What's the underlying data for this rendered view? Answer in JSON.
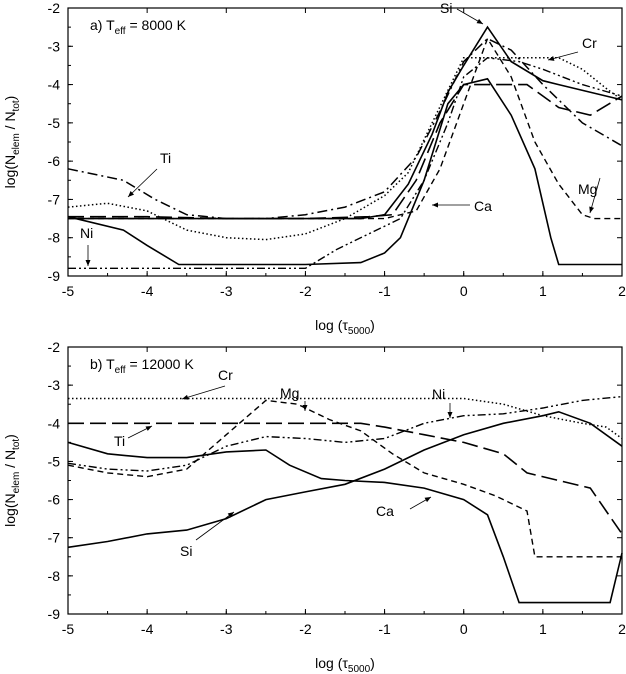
{
  "chart_data": [
    {
      "type": "line",
      "panel_label": "a)",
      "teff_label": "8000 K",
      "xlabel": "log (τ5000)",
      "ylabel": "log(Nelem / Ntot)",
      "xlim": [
        -5,
        2
      ],
      "ylim": [
        -9,
        -2
      ],
      "xticks": [
        "-5",
        "-4",
        "-3",
        "-2",
        "-1",
        "0",
        "1",
        "2"
      ],
      "yticks": [
        "-2",
        "-3",
        "-4",
        "-5",
        "-6",
        "-7",
        "-8",
        "-9"
      ],
      "series": [
        {
          "name": "Si",
          "style": "solid",
          "x": [
            -5,
            -4.5,
            -4,
            -3.7,
            -3.3,
            -3,
            -2.5,
            -2,
            -1.5,
            -1.3,
            -1,
            -0.7,
            -0.4,
            -0.2,
            0,
            0.3,
            0.6,
            1.0,
            1.2,
            2.0
          ],
          "y": [
            -7.5,
            -7.5,
            -7.5,
            -7.5,
            -7.5,
            -7.5,
            -7.5,
            -7.5,
            -7.5,
            -7.5,
            -7.4,
            -6.6,
            -5.3,
            -4.2,
            -3.5,
            -2.5,
            -3.4,
            -3.9,
            -4.0,
            -4.4
          ]
        },
        {
          "name": "Ca",
          "style": "solid",
          "x": [
            -5,
            -4.3,
            -4,
            -3.6,
            -3,
            -2,
            -1.3,
            -1,
            -0.8,
            -0.5,
            -0.2,
            0,
            0.3,
            0.6,
            0.9,
            1.1,
            1.2,
            2.0
          ],
          "y": [
            -7.45,
            -7.8,
            -8.2,
            -8.7,
            -8.7,
            -8.7,
            -8.65,
            -8.4,
            -8.0,
            -6.5,
            -4.5,
            -4.0,
            -3.85,
            -4.8,
            -6.2,
            -8.0,
            -8.7,
            -8.7
          ]
        },
        {
          "name": "Mg",
          "style": "dashed",
          "x": [
            -5,
            -3,
            -2,
            -1,
            -0.6,
            -0.3,
            0,
            0.3,
            0.6,
            0.9,
            1.2,
            1.5,
            1.65,
            2.0
          ],
          "y": [
            -7.5,
            -7.5,
            -7.5,
            -7.5,
            -7.3,
            -6.2,
            -4.5,
            -2.8,
            -3.8,
            -5.5,
            -6.6,
            -7.4,
            -7.5,
            -7.5
          ]
        },
        {
          "name": "Cr",
          "style": "dotted",
          "x": [
            -5,
            -4.5,
            -4,
            -3.5,
            -3,
            -2.5,
            -2,
            -1.5,
            -1,
            -0.7,
            -0.4,
            0,
            0.3,
            0.7,
            1.0,
            1.2,
            1.5,
            1.8,
            2.0
          ],
          "y": [
            -7.2,
            -7.1,
            -7.3,
            -7.8,
            -8.0,
            -8.05,
            -7.9,
            -7.5,
            -6.9,
            -6.3,
            -5.0,
            -3.3,
            -3.3,
            -3.3,
            -3.3,
            -3.3,
            -3.6,
            -4.1,
            -4.4
          ]
        },
        {
          "name": "Ti",
          "style": "dash-dot",
          "x": [
            -5,
            -4.3,
            -3.9,
            -3.5,
            -3,
            -2.5,
            -2,
            -1.5,
            -1,
            -0.6,
            -0.3,
            0,
            0.3,
            0.6,
            1.0,
            1.5,
            2.0
          ],
          "y": [
            -6.2,
            -6.5,
            -7.0,
            -7.4,
            -7.5,
            -7.5,
            -7.4,
            -7.2,
            -6.8,
            -5.9,
            -4.7,
            -3.4,
            -2.8,
            -3.1,
            -4.0,
            -5.0,
            -5.6
          ]
        },
        {
          "name": "Ni",
          "style": "dash-dot-dot",
          "x": [
            -5,
            -4,
            -3,
            -2,
            -1.6,
            -1.2,
            -0.8,
            -0.5,
            -0.2,
            0,
            0.3,
            0.7,
            1.0,
            1.5,
            2.0
          ],
          "y": [
            -8.8,
            -8.8,
            -8.8,
            -8.8,
            -8.3,
            -7.9,
            -7.5,
            -6.5,
            -5.0,
            -3.8,
            -3.3,
            -3.4,
            -3.6,
            -4.0,
            -4.3
          ]
        },
        {
          "name": "",
          "style": "long-dash",
          "x": [
            -5,
            -4,
            -3,
            -2,
            -1.2,
            -0.9,
            -0.6,
            -0.3,
            0,
            0.3,
            0.8,
            1.2,
            1.6,
            2.0
          ],
          "y": [
            -7.45,
            -7.45,
            -7.5,
            -7.5,
            -7.45,
            -7.4,
            -6.5,
            -5.0,
            -4.0,
            -4.0,
            -4.0,
            -4.6,
            -4.8,
            -4.3
          ]
        }
      ],
      "annotations": [
        "Si",
        "Cr",
        "Ti",
        "Mg",
        "Ca",
        "Ni"
      ]
    },
    {
      "type": "line",
      "panel_label": "b)",
      "teff_label": "12000 K",
      "xlabel": "log (τ5000)",
      "ylabel": "log(Nelem / Ntot)",
      "xlim": [
        -5,
        2
      ],
      "ylim": [
        -9,
        -2
      ],
      "xticks": [
        "-5",
        "-4",
        "-3",
        "-2",
        "-1",
        "0",
        "1",
        "2"
      ],
      "yticks": [
        "-2",
        "-3",
        "-4",
        "-5",
        "-6",
        "-7",
        "-8",
        "-9"
      ],
      "series": [
        {
          "name": "Cr",
          "style": "dotted",
          "x": [
            -5,
            -4,
            -3,
            -2,
            -1,
            0,
            0.5,
            1.0,
            1.5,
            1.8,
            2.0
          ],
          "y": [
            -3.35,
            -3.35,
            -3.35,
            -3.35,
            -3.35,
            -3.35,
            -3.5,
            -3.8,
            -4.0,
            -4.1,
            -4.4
          ]
        },
        {
          "name": "Ti",
          "style": "long-dash",
          "x": [
            -5,
            -4,
            -3,
            -2,
            -1.3,
            -1.0,
            -0.5,
            0,
            0.5,
            0.8,
            1.2,
            1.6,
            2.0
          ],
          "y": [
            -4.0,
            -4.0,
            -4.0,
            -4.0,
            -4.0,
            -4.1,
            -4.3,
            -4.5,
            -4.8,
            -5.3,
            -5.5,
            -5.7,
            -6.9
          ]
        },
        {
          "name": "Mg",
          "style": "dashed",
          "x": [
            -5,
            -4.5,
            -4,
            -3.5,
            -3,
            -2.5,
            -2.1,
            -1.7,
            -1.3,
            -0.9,
            -0.5,
            0,
            0.4,
            0.8,
            0.9,
            2.0
          ],
          "y": [
            -5.1,
            -5.3,
            -5.4,
            -5.2,
            -4.3,
            -3.4,
            -3.5,
            -3.9,
            -4.2,
            -4.8,
            -5.3,
            -5.6,
            -5.9,
            -6.3,
            -7.5,
            -7.5
          ]
        },
        {
          "name": "Ni",
          "style": "dash-dot-dot",
          "x": [
            -5,
            -4.5,
            -4,
            -3.5,
            -3,
            -2.5,
            -2,
            -1.5,
            -1,
            -0.5,
            0,
            0.5,
            1.0,
            1.5,
            2.0
          ],
          "y": [
            -5.05,
            -5.2,
            -5.25,
            -5.1,
            -4.6,
            -4.35,
            -4.4,
            -4.5,
            -4.4,
            -4.0,
            -3.8,
            -3.75,
            -3.6,
            -3.4,
            -3.3
          ]
        },
        {
          "name": "Ca",
          "style": "solid",
          "x": [
            -5,
            -4.5,
            -4,
            -3.5,
            -3,
            -2.5,
            -2.2,
            -1.8,
            -1.5,
            -1,
            -0.5,
            0,
            0.3,
            0.5,
            0.7,
            1.0,
            1.5,
            1.85,
            2.0
          ],
          "y": [
            -4.5,
            -4.8,
            -4.9,
            -4.9,
            -4.75,
            -4.7,
            -5.1,
            -5.45,
            -5.5,
            -5.55,
            -5.7,
            -6.0,
            -6.4,
            -7.5,
            -8.7,
            -8.7,
            -8.7,
            -8.7,
            -7.4
          ]
        },
        {
          "name": "Si",
          "style": "solid",
          "x": [
            -5,
            -4.5,
            -4,
            -3.5,
            -3,
            -2.5,
            -2,
            -1.5,
            -1,
            -0.5,
            0,
            0.5,
            1.0,
            1.2,
            1.6,
            2.0
          ],
          "y": [
            -7.25,
            -7.1,
            -6.9,
            -6.8,
            -6.5,
            -6.0,
            -5.8,
            -5.6,
            -5.2,
            -4.7,
            -4.3,
            -4.0,
            -3.8,
            -3.7,
            -4.0,
            -4.6
          ]
        }
      ],
      "annotations": [
        "Cr",
        "Mg",
        "Ni",
        "Ti",
        "Ca",
        "Si"
      ]
    }
  ],
  "text": {
    "sub_elem": "elem",
    "sub_tot": "tot",
    "sub_eff": "eff",
    "sub_5000": "5000",
    "teff_T": "T",
    "eq": " = "
  }
}
